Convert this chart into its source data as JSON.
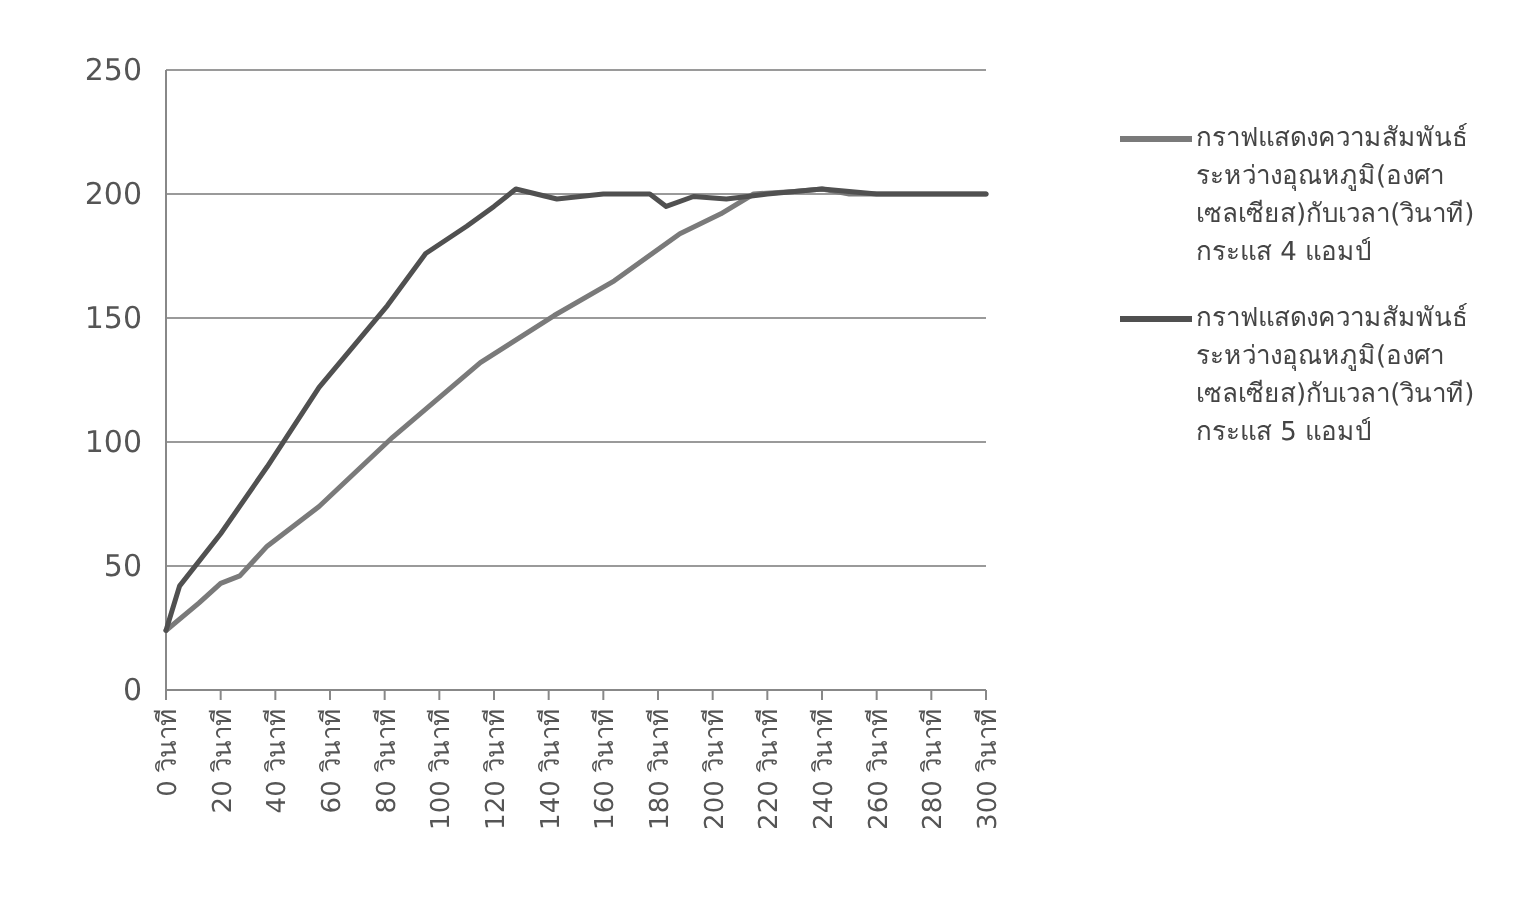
{
  "chart_data": {
    "type": "line",
    "xlim": [
      0,
      300
    ],
    "ylim": [
      0,
      250
    ],
    "xticks": [
      {
        "value": 0,
        "label": "0 วินาที"
      },
      {
        "value": 20,
        "label": "20 วินาที"
      },
      {
        "value": 40,
        "label": "40 วินาที"
      },
      {
        "value": 60,
        "label": "60 วินาที"
      },
      {
        "value": 80,
        "label": "80 วินาที"
      },
      {
        "value": 100,
        "label": "100 วินาที"
      },
      {
        "value": 120,
        "label": "120 วินาที"
      },
      {
        "value": 140,
        "label": "140 วินาที"
      },
      {
        "value": 160,
        "label": "160 วินาที"
      },
      {
        "value": 180,
        "label": "180 วินาที"
      },
      {
        "value": 200,
        "label": "200 วินาที"
      },
      {
        "value": 220,
        "label": "220 วินาที"
      },
      {
        "value": 240,
        "label": "240 วินาที"
      },
      {
        "value": 260,
        "label": "260 วินาที"
      },
      {
        "value": 280,
        "label": "280 วินาที"
      },
      {
        "value": 300,
        "label": "300 วินาที"
      }
    ],
    "yticks": [
      0,
      50,
      100,
      150,
      200,
      250
    ],
    "grid": "y",
    "legend": "right",
    "marker": "none",
    "line_style": "solid",
    "series": [
      {
        "name": "กราฟแสดงความสัมพันธ์ระหว่างอุณหภูมิ(องศาเซลเซียส)กับเวลา(วินาที) กระแส 4 แอมป์",
        "color": "#7a7a7a",
        "x": [
          0,
          12,
          20,
          27,
          37,
          56,
          83,
          115,
          142,
          164,
          188,
          203,
          215,
          230,
          240,
          250,
          270,
          300
        ],
        "values": [
          24,
          35,
          43,
          46,
          58,
          74,
          102,
          132,
          151,
          165,
          184,
          192,
          200,
          201,
          202,
          200,
          200,
          200
        ]
      },
      {
        "name": "กราฟแสดงความสัมพันธ์ระหว่างอุณหภูมิ(องศาเซลเซียส)กับเวลา(วินาที) กระแส 5 แอมป์",
        "color": "#505050",
        "x": [
          0,
          5,
          20,
          37,
          56,
          81,
          95,
          110,
          120,
          128,
          143,
          160,
          177,
          183,
          193,
          205,
          220,
          240,
          260,
          300
        ],
        "values": [
          24,
          42,
          63,
          90,
          122,
          155,
          176,
          187,
          195,
          202,
          198,
          200,
          200,
          195,
          199,
          198,
          200,
          202,
          200,
          200
        ]
      }
    ]
  }
}
